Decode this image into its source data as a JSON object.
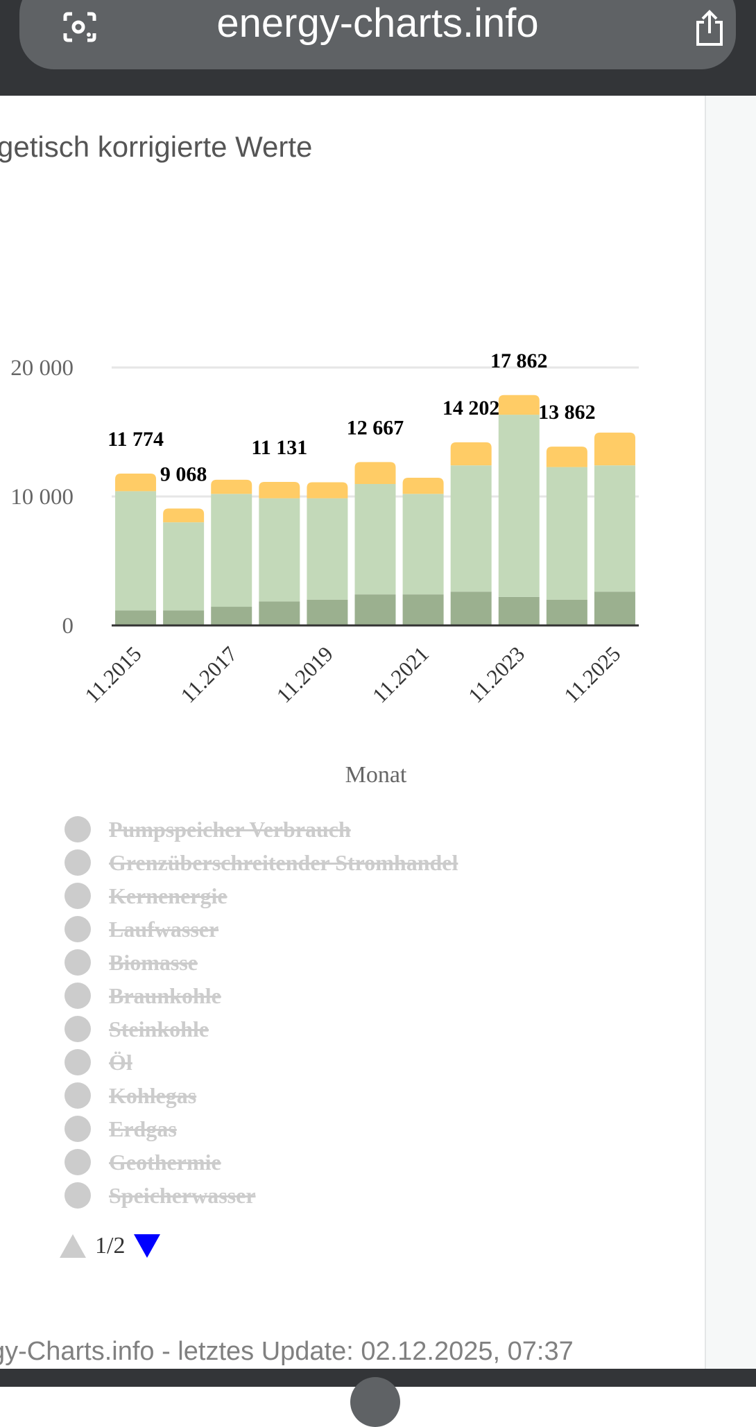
{
  "browser": {
    "url": "energy-charts.info"
  },
  "page": {
    "title": "getisch korrigierte Werte",
    "footer": "gy-Charts.info - letztes Update: 02.12.2025, 07:37"
  },
  "chart_data": {
    "type": "bar",
    "stacked": true,
    "xlabel": "Monat",
    "ylabel": "",
    "ylim": [
      0,
      20000
    ],
    "yticks": [
      0,
      10000,
      20000
    ],
    "ytick_labels": [
      "0",
      "10 000",
      "20 000"
    ],
    "categories": [
      "11.2015",
      "11.2016",
      "11.2017",
      "11.2018",
      "11.2019",
      "11.2020",
      "11.2021",
      "11.2022",
      "11.2023",
      "11.2024",
      "11.2025"
    ],
    "xtick_labels": [
      "11.2015",
      "11.2017",
      "11.2019",
      "11.2021",
      "11.2023",
      "11.2025"
    ],
    "grid": true,
    "series": [
      {
        "color": "#9bb08f",
        "values": [
          1170,
          1170,
          1450,
          1860,
          2000,
          2410,
          2410,
          2620,
          2210,
          2000,
          2620
        ]
      },
      {
        "color": "#c3d9b9",
        "values": [
          9240,
          6830,
          8750,
          8000,
          7860,
          8560,
          7790,
          9790,
          14130,
          10280,
          9790
        ]
      },
      {
        "color": "#ffcc66",
        "values": [
          1364,
          1068,
          1100,
          1271,
          1240,
          1697,
          1250,
          1792,
          1522,
          1582,
          2540
        ]
      }
    ],
    "data_labels": [
      "11 774",
      "9 068",
      "",
      "11 131",
      "",
      "12 667",
      "",
      "14 202",
      "17 862",
      "13 862",
      ""
    ]
  },
  "legend": {
    "items": [
      "Pumpspeicher Verbrauch",
      "Grenzüberschreitender Stromhandel",
      "Kernenergie",
      "Laufwasser",
      "Biomasse",
      "Braunkohle",
      "Steinkohle",
      "Öl",
      "Kohlegas",
      "Erdgas",
      "Geothermie",
      "Speicherwasser"
    ],
    "disabled_color": "#cccccc",
    "pager": {
      "text": "1/2",
      "up_color": "#cccccc",
      "down_color": "#0000ff"
    }
  }
}
